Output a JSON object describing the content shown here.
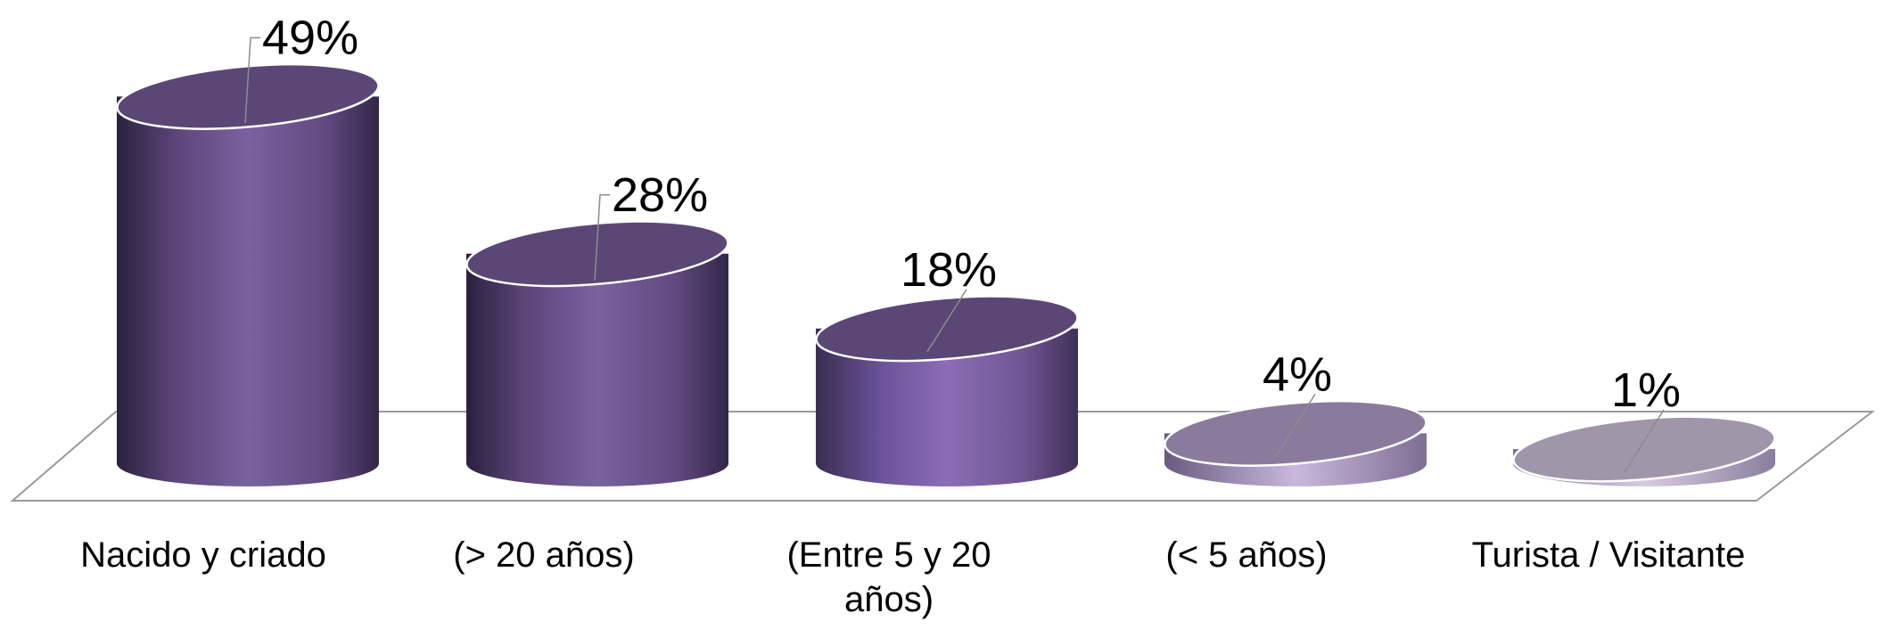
{
  "chart_data": {
    "type": "bar",
    "style": "3d-cylinder",
    "categories": [
      "Nacido y criado",
      "(> 20 años)",
      "(Entre 5 y 20 años)",
      "(< 5 años)",
      "Turista / Visitante"
    ],
    "values": [
      49,
      28,
      18,
      4,
      1
    ],
    "value_labels": [
      "49%",
      "28%",
      "18%",
      "4%",
      "1%"
    ],
    "unit": "%",
    "title": "",
    "xlabel": "",
    "ylabel": "",
    "ylim": [
      0,
      49
    ],
    "grid": false,
    "legend": "none",
    "colors": {
      "bar_dark": "#3a2d50",
      "bar_mid": "#6e5690",
      "bar_light": "#8a6bb0",
      "top_fill": "#5a4775",
      "small_top_fill": "#8a7a9c",
      "tiny_top_fill": "#a096aa",
      "small_side": "#c5b5d9",
      "floor_line": "#999999",
      "leader_line": "#8c8c8c"
    }
  }
}
